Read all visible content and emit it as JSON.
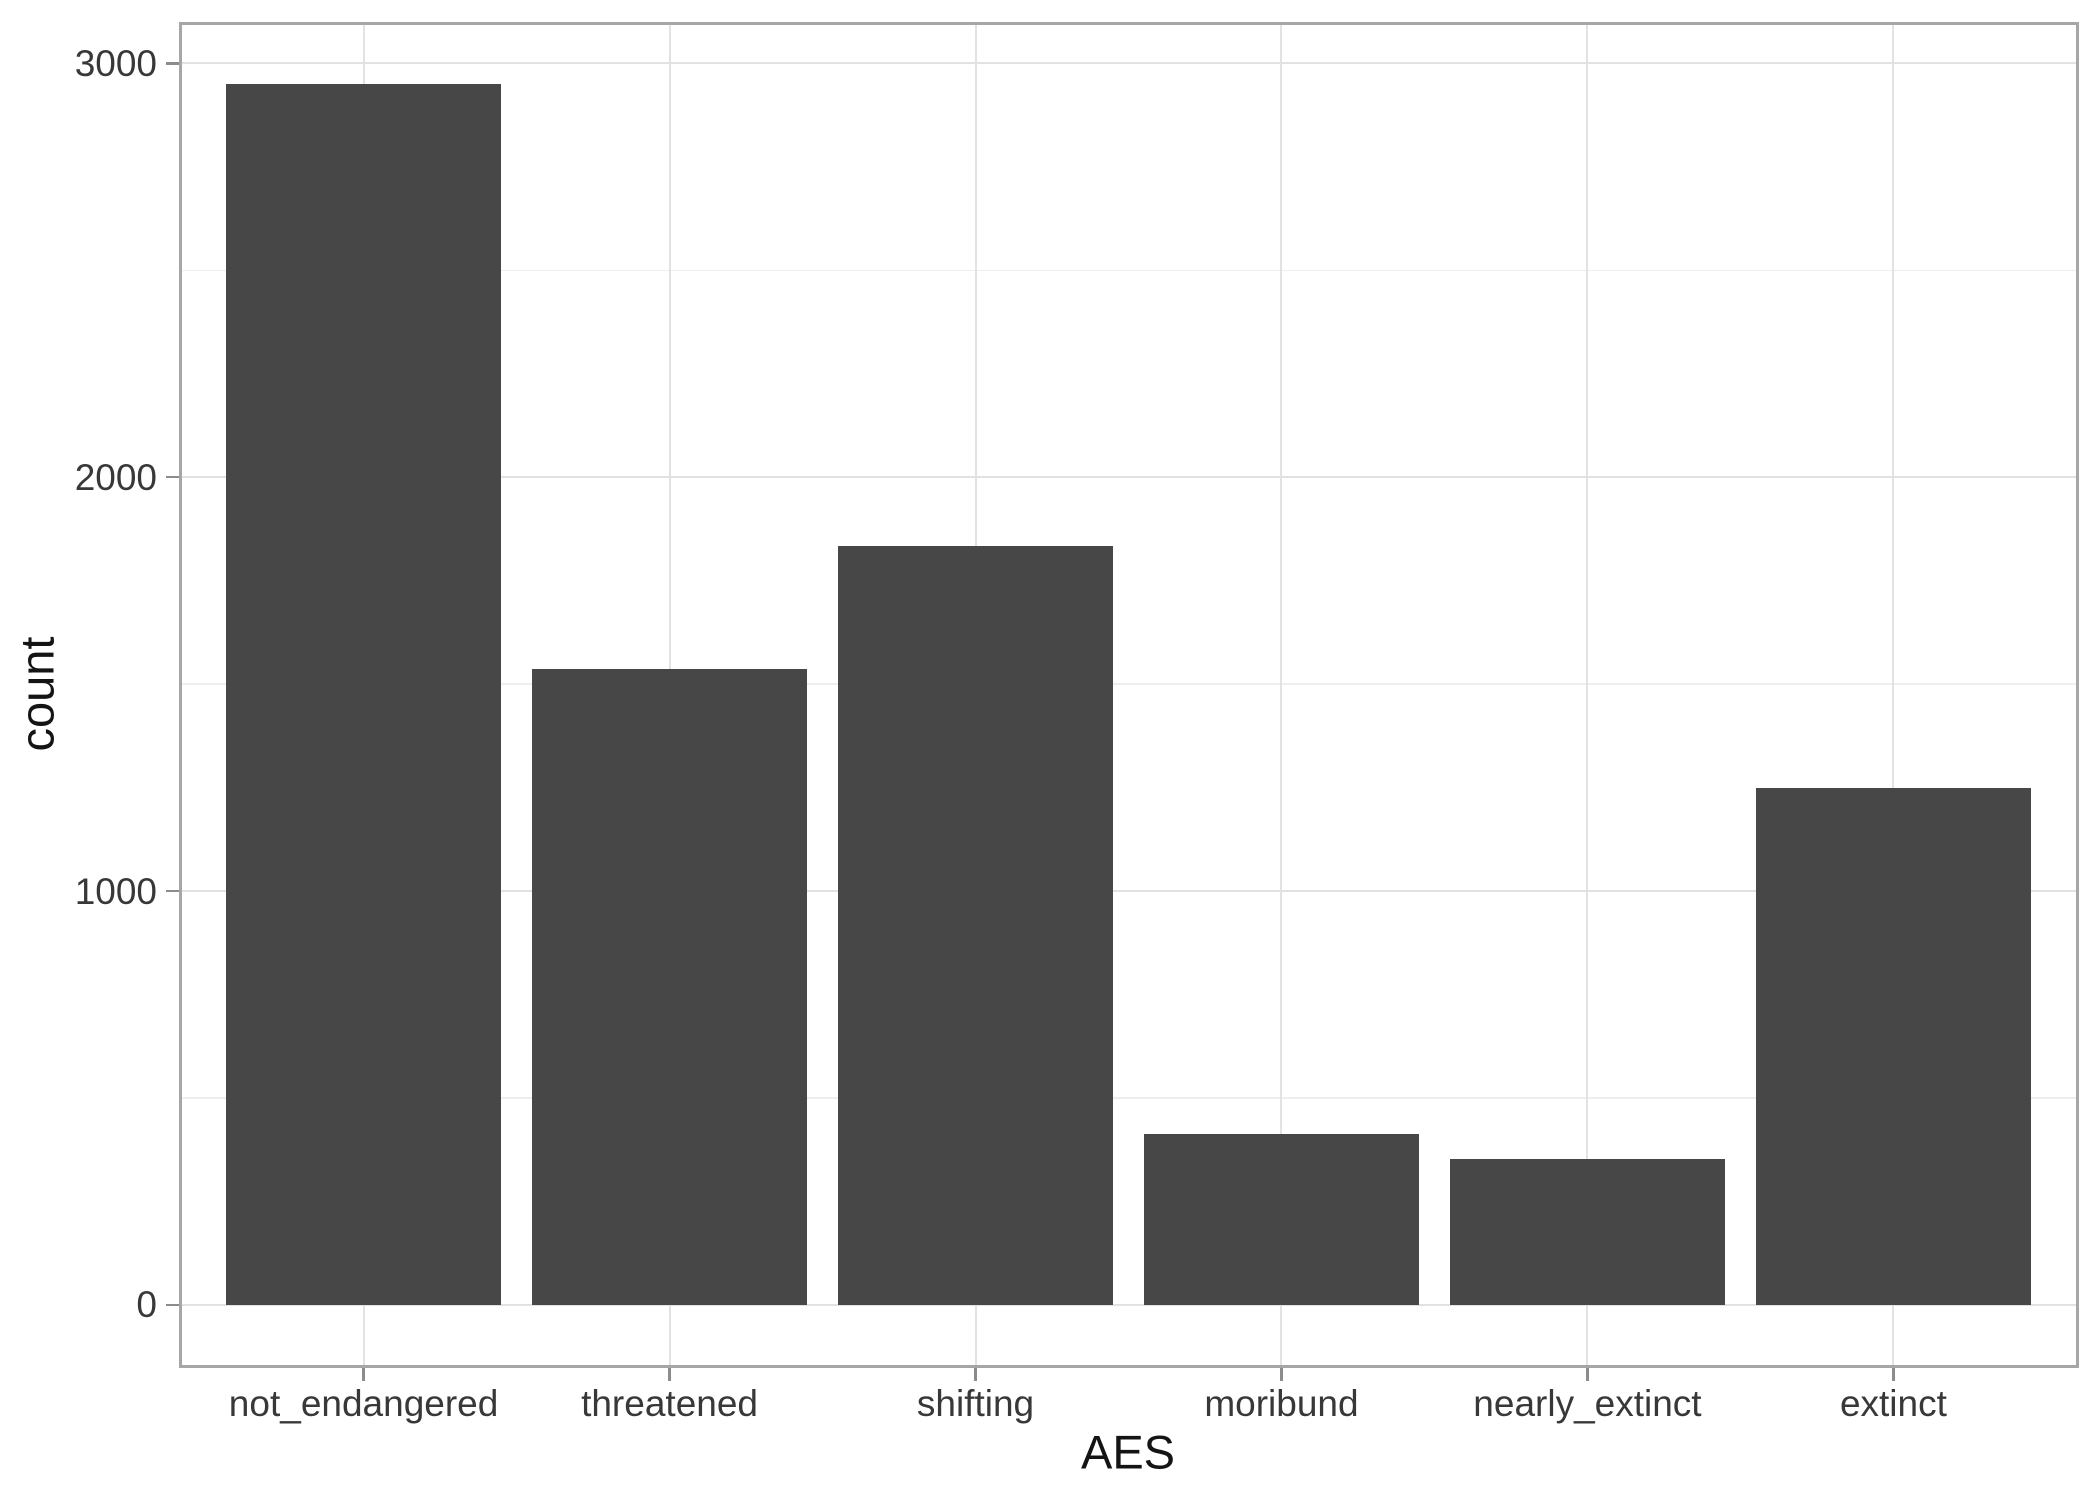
{
  "figure": {
    "background": "#ffffff"
  },
  "chart_data": {
    "type": "bar",
    "title": "",
    "xlabel": "AES",
    "ylabel": "count",
    "categories": [
      "not_endangered",
      "threatened",
      "shifting",
      "moribund",
      "nearly_extinct",
      "extinct"
    ],
    "values": [
      2950,
      1536,
      1834,
      413,
      352,
      1248
    ],
    "ylim": [
      -147.5,
      3097.5
    ],
    "y_major_ticks": [
      0,
      1000,
      2000,
      3000
    ],
    "y_major_tick_labels": [
      "0",
      "1000",
      "2000",
      "3000"
    ],
    "y_minor_gridlines": [
      500,
      1500,
      2500
    ],
    "x_gridlines_at_category_centers": true,
    "grid": true,
    "legend": false
  },
  "style": {
    "bar_fill": "#474747",
    "grid_major": "#e2e2e2",
    "grid_minor": "#eeeeee",
    "panel_border": "#a6a6a6",
    "tick_mark": "#8c8c8c",
    "tick_label_color": "#383838",
    "axis_title_color": "#141414",
    "panel_background": "#ffffff"
  }
}
